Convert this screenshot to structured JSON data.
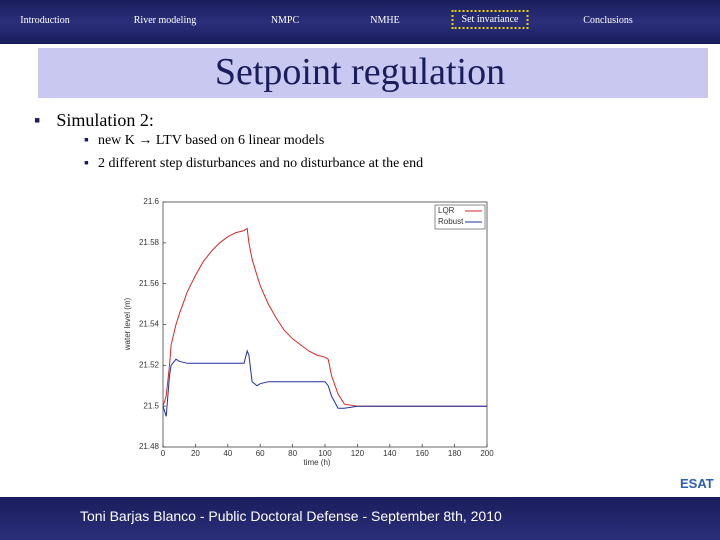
{
  "nav": {
    "items": [
      "Introduction",
      "River modeling",
      "NMPC",
      "NMHE",
      "Set invariance",
      "Conclusions"
    ],
    "active": 4
  },
  "title": "Setpoint regulation",
  "bullets": [
    {
      "text": "Simulation 2:",
      "sub": [
        "new K → LTV based on 6 linear models",
        "2 different step disturbances and no disturbance at the end"
      ]
    }
  ],
  "chart_data": {
    "type": "line",
    "xlabel": "time (h)",
    "ylabel": "water level (m)",
    "x": [
      0,
      2,
      4,
      5,
      8,
      10,
      15,
      20,
      25,
      30,
      35,
      40,
      45,
      50,
      52,
      53,
      55,
      58,
      60,
      65,
      70,
      75,
      80,
      85,
      90,
      95,
      100,
      102,
      104,
      108,
      112,
      120,
      140,
      160,
      180,
      200
    ],
    "series": [
      {
        "name": "LQR",
        "color": "#d62728",
        "values": [
          21.5,
          21.505,
          21.52,
          21.53,
          21.54,
          21.545,
          21.556,
          21.564,
          21.571,
          21.576,
          21.58,
          21.583,
          21.585,
          21.586,
          21.587,
          21.58,
          21.572,
          21.564,
          21.559,
          21.55,
          21.543,
          21.537,
          21.533,
          21.53,
          21.527,
          21.525,
          21.524,
          21.523,
          21.515,
          21.506,
          21.501,
          21.5,
          21.5,
          21.5,
          21.5,
          21.5
        ]
      },
      {
        "name": "Robust",
        "color": "#1f2fa8",
        "values": [
          21.5,
          21.495,
          21.515,
          21.52,
          21.523,
          21.522,
          21.521,
          21.521,
          21.521,
          21.521,
          21.521,
          21.521,
          21.521,
          21.521,
          21.527,
          21.525,
          21.512,
          21.51,
          21.511,
          21.512,
          21.512,
          21.512,
          21.512,
          21.512,
          21.512,
          21.512,
          21.512,
          21.51,
          21.505,
          21.499,
          21.499,
          21.5,
          21.5,
          21.5,
          21.5,
          21.5
        ]
      }
    ],
    "xlim": [
      0,
      200
    ],
    "xticks": [
      0,
      20,
      40,
      60,
      80,
      100,
      120,
      140,
      160,
      180,
      200
    ],
    "ylim": [
      21.48,
      21.6
    ],
    "yticks": [
      21.48,
      21.5,
      21.52,
      21.54,
      21.56,
      21.58,
      21.6
    ],
    "legend": "upper right"
  },
  "logo": "ESAT",
  "footer": "Toni Barjas Blanco - Public Doctoral Defense - September 8th, 2010"
}
